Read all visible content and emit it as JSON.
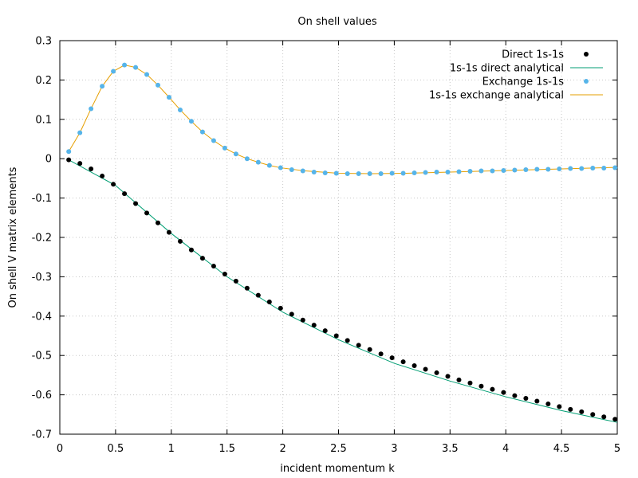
{
  "chart_data": {
    "type": "line",
    "title": "On shell values",
    "xlabel": "incident momentum k",
    "ylabel": "On shell V matrix elements",
    "xlim": [
      0,
      5
    ],
    "ylim": [
      -0.7,
      0.3
    ],
    "x_ticks": [
      "0",
      "0.5",
      "1",
      "1.5",
      "2",
      "2.5",
      "3",
      "3.5",
      "4",
      "4.5",
      "5"
    ],
    "y_ticks": [
      "0.3",
      "0.2",
      "0.1",
      "0",
      "-0.1",
      "-0.2",
      "-0.3",
      "-0.4",
      "-0.5",
      "-0.6",
      "-0.7"
    ],
    "grid": true,
    "legend_position": "top-right",
    "series": [
      {
        "name": "Direct 1s-1s",
        "kind": "points",
        "color": "#000000",
        "x": [
          0.08,
          0.18,
          0.28,
          0.38,
          0.48,
          0.58,
          0.68,
          0.78,
          0.88,
          0.98,
          1.08,
          1.18,
          1.28,
          1.38,
          1.48,
          1.58,
          1.68,
          1.78,
          1.88,
          1.98,
          2.08,
          2.18,
          2.28,
          2.38,
          2.48,
          2.58,
          2.68,
          2.78,
          2.88,
          2.98,
          3.08,
          3.18,
          3.28,
          3.38,
          3.48,
          3.58,
          3.68,
          3.78,
          3.88,
          3.98,
          4.08,
          4.18,
          4.28,
          4.38,
          4.48,
          4.58,
          4.68,
          4.78,
          4.88,
          4.98
        ],
        "y": [
          -0.003,
          -0.012,
          -0.026,
          -0.044,
          -0.065,
          -0.089,
          -0.114,
          -0.138,
          -0.163,
          -0.187,
          -0.21,
          -0.232,
          -0.253,
          -0.273,
          -0.293,
          -0.311,
          -0.329,
          -0.347,
          -0.364,
          -0.38,
          -0.395,
          -0.41,
          -0.423,
          -0.437,
          -0.45,
          -0.462,
          -0.474,
          -0.485,
          -0.496,
          -0.506,
          -0.516,
          -0.526,
          -0.535,
          -0.544,
          -0.553,
          -0.562,
          -0.57,
          -0.578,
          -0.586,
          -0.594,
          -0.602,
          -0.609,
          -0.616,
          -0.623,
          -0.63,
          -0.637,
          -0.643,
          -0.65,
          -0.656,
          -0.662
        ]
      },
      {
        "name": "1s-1s direct analytical",
        "kind": "line",
        "color": "#009e73",
        "x": [
          0.08,
          0.5,
          1.0,
          1.5,
          2.0,
          2.5,
          3.0,
          3.5,
          4.0,
          4.5,
          5.0
        ],
        "y": [
          -0.003,
          -0.068,
          -0.19,
          -0.3,
          -0.39,
          -0.46,
          -0.52,
          -0.565,
          -0.605,
          -0.64,
          -0.67
        ]
      },
      {
        "name": "Exchange 1s-1s",
        "kind": "points",
        "color": "#56b4e9",
        "x": [
          0.08,
          0.18,
          0.28,
          0.38,
          0.48,
          0.58,
          0.68,
          0.78,
          0.88,
          0.98,
          1.08,
          1.18,
          1.28,
          1.38,
          1.48,
          1.58,
          1.68,
          1.78,
          1.88,
          1.98,
          2.08,
          2.18,
          2.28,
          2.38,
          2.48,
          2.58,
          2.68,
          2.78,
          2.88,
          2.98,
          3.08,
          3.18,
          3.28,
          3.38,
          3.48,
          3.58,
          3.68,
          3.78,
          3.88,
          3.98,
          4.08,
          4.18,
          4.28,
          4.38,
          4.48,
          4.58,
          4.68,
          4.78,
          4.88,
          4.98
        ],
        "y": [
          0.018,
          0.066,
          0.127,
          0.184,
          0.222,
          0.238,
          0.232,
          0.214,
          0.187,
          0.156,
          0.124,
          0.095,
          0.068,
          0.046,
          0.027,
          0.012,
          0.0,
          -0.009,
          -0.017,
          -0.023,
          -0.028,
          -0.031,
          -0.034,
          -0.036,
          -0.037,
          -0.038,
          -0.038,
          -0.038,
          -0.038,
          -0.037,
          -0.037,
          -0.036,
          -0.035,
          -0.034,
          -0.034,
          -0.033,
          -0.032,
          -0.031,
          -0.031,
          -0.03,
          -0.029,
          -0.028,
          -0.027,
          -0.027,
          -0.026,
          -0.025,
          -0.025,
          -0.024,
          -0.024,
          -0.023
        ]
      },
      {
        "name": "1s-1s exchange analytical",
        "kind": "line",
        "color": "#e69f00",
        "x": [
          0.08,
          0.18,
          0.28,
          0.38,
          0.48,
          0.58,
          0.68,
          0.78,
          0.88,
          0.98,
          1.08,
          1.18,
          1.28,
          1.38,
          1.48,
          1.58,
          1.68,
          1.78,
          1.88,
          1.98,
          2.2,
          2.5,
          2.8,
          3.1,
          3.5,
          4.0,
          4.5,
          5.0
        ],
        "y": [
          0.018,
          0.066,
          0.127,
          0.184,
          0.222,
          0.238,
          0.232,
          0.214,
          0.187,
          0.156,
          0.124,
          0.095,
          0.068,
          0.046,
          0.027,
          0.012,
          0.0,
          -0.009,
          -0.017,
          -0.023,
          -0.031,
          -0.037,
          -0.038,
          -0.037,
          -0.034,
          -0.03,
          -0.026,
          -0.022
        ]
      }
    ]
  }
}
